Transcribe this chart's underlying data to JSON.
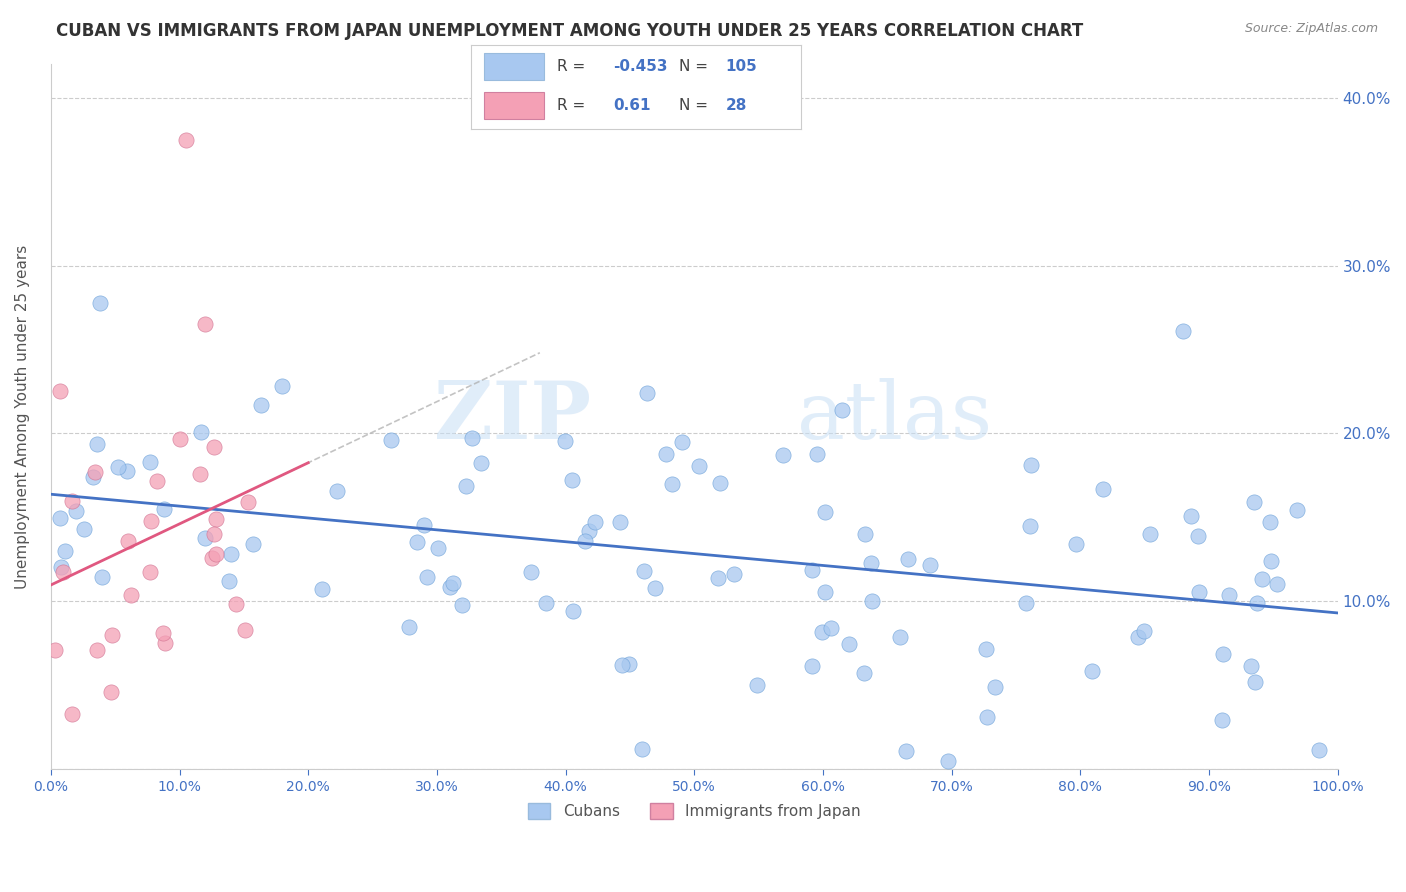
{
  "title": "CUBAN VS IMMIGRANTS FROM JAPAN UNEMPLOYMENT AMONG YOUTH UNDER 25 YEARS CORRELATION CHART",
  "source": "Source: ZipAtlas.com",
  "ylabel": "Unemployment Among Youth under 25 years",
  "xlim": [
    0.0,
    1.0
  ],
  "ylim": [
    0.0,
    0.42
  ],
  "xticks": [
    0.0,
    0.1,
    0.2,
    0.3,
    0.4,
    0.5,
    0.6,
    0.7,
    0.8,
    0.9,
    1.0
  ],
  "yticks": [
    0.0,
    0.1,
    0.2,
    0.3,
    0.4
  ],
  "ytick_labels_right": [
    "",
    "10.0%",
    "20.0%",
    "30.0%",
    "40.0%"
  ],
  "xtick_labels": [
    "0.0%",
    "10.0%",
    "20.0%",
    "30.0%",
    "40.0%",
    "50.0%",
    "60.0%",
    "70.0%",
    "80.0%",
    "90.0%",
    "100.0%"
  ],
  "watermark_zip": "ZIP",
  "watermark_atlas": "atlas",
  "cubans_R": -0.453,
  "cubans_N": 105,
  "japan_R": 0.61,
  "japan_N": 28,
  "cubans_color": "#a8c8f0",
  "japan_color": "#f4a0b5",
  "cubans_line_color": "#4472c4",
  "japan_line_color": "#e05880",
  "legend_blue_label": "Cubans",
  "legend_pink_label": "Immigrants from Japan",
  "title_color": "#333333",
  "source_color": "#888888",
  "tick_color": "#4472c4",
  "ylabel_color": "#555555",
  "grid_color": "#cccccc"
}
